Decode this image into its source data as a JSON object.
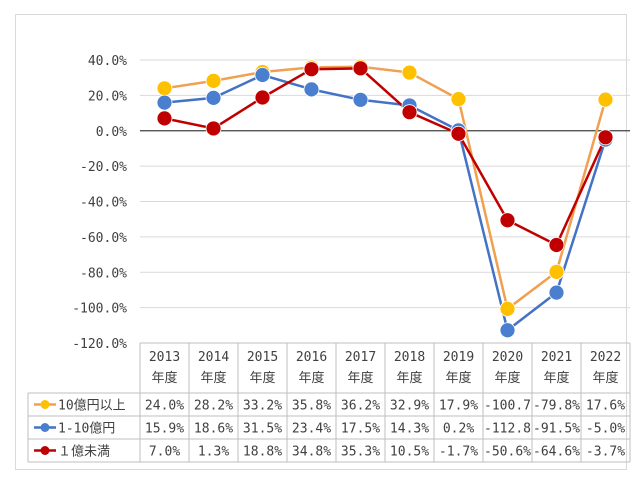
{
  "chart_data": {
    "type": "line",
    "title": "",
    "xlabel": "",
    "ylabel": "",
    "ylim": [
      -120,
      40
    ],
    "yticks": [
      "40.0%",
      "20.0%",
      "0.0%",
      "-20.0%",
      "-40.0%",
      "-60.0%",
      "-80.0%",
      "-100.0%",
      "-120.0%"
    ],
    "ytick_values": [
      40,
      20,
      0,
      -20,
      -40,
      -60,
      -80,
      -100,
      -120
    ],
    "categories": [
      "2013\n年度",
      "2014\n年度",
      "2015\n年度",
      "2016\n年度",
      "2017\n年度",
      "2018\n年度",
      "2019\n年度",
      "2020\n年度",
      "2021\n年度",
      "2022\n年度"
    ],
    "grid": true,
    "legend": "data-table-left",
    "series": [
      {
        "name": "10億円以上",
        "color": "#f0a050",
        "marker_color": "#ffc000",
        "values": [
          24.0,
          28.2,
          33.2,
          35.8,
          36.2,
          32.9,
          17.9,
          -100.7,
          -79.8,
          17.6
        ],
        "labels": [
          "24.0%",
          "28.2%",
          "33.2%",
          "35.8%",
          "36.2%",
          "32.9%",
          "17.9%",
          "-100.7",
          "-79.8%",
          "17.6%"
        ]
      },
      {
        "name": "1-10億円",
        "color": "#4472c4",
        "marker_color": "#4a7fd0",
        "values": [
          15.9,
          18.6,
          31.5,
          23.4,
          17.5,
          14.3,
          0.2,
          -112.8,
          -91.5,
          -5.0
        ],
        "labels": [
          "15.9%",
          "18.6%",
          "31.5%",
          "23.4%",
          "17.5%",
          "14.3%",
          "0.2%",
          "-112.8",
          "-91.5%",
          "-5.0%"
        ]
      },
      {
        "name": "１億未満",
        "color": "#c00000",
        "marker_color": "#c00000",
        "values": [
          7.0,
          1.3,
          18.8,
          34.8,
          35.3,
          10.5,
          -1.7,
          -50.6,
          -64.6,
          -3.7
        ],
        "labels": [
          "7.0%",
          "1.3%",
          "18.8%",
          "34.8%",
          "35.3%",
          "10.5%",
          "-1.7%",
          "-50.6%",
          "-64.6%",
          "-3.7%"
        ]
      }
    ]
  }
}
